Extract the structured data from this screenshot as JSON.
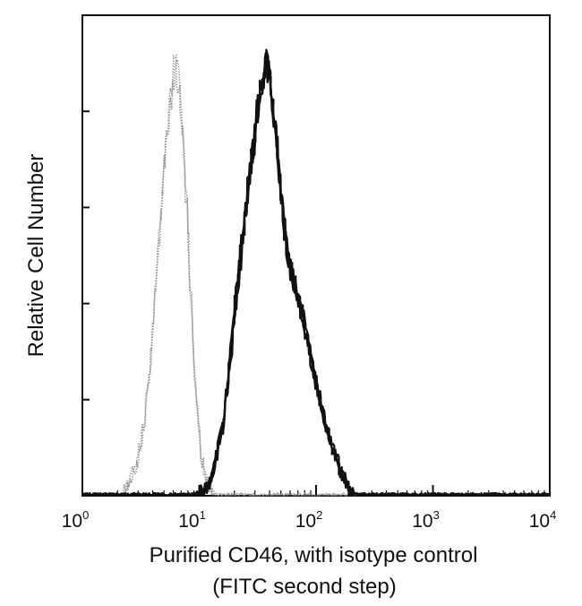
{
  "chart_data": {
    "type": "area",
    "xscale": "log",
    "xlim": [
      1,
      10000
    ],
    "ylim": [
      0,
      100
    ],
    "grid": false,
    "legend": "none",
    "xlabel": [
      "Purified CD46, with isotype control",
      "(FITC second step)"
    ],
    "ylabel": "Relative Cell Number",
    "x_ticks": [
      {
        "base": "10",
        "exp": "0",
        "value": 1
      },
      {
        "base": "10",
        "exp": "1",
        "value": 10
      },
      {
        "base": "10",
        "exp": "2",
        "value": 100
      },
      {
        "base": "10",
        "exp": "3",
        "value": 1000
      },
      {
        "base": "10",
        "exp": "4",
        "value": 10000
      }
    ],
    "y_minor_ticks": [
      20,
      40,
      60,
      80
    ],
    "series": [
      {
        "color": "#8a8a8a",
        "style": "dotted",
        "x": [
          1,
          2.2,
          2.5,
          2.9,
          3.3,
          3.7,
          4.1,
          4.6,
          5.0,
          5.5,
          6.0,
          6.3,
          6.7,
          7.1,
          7.6,
          8.2,
          8.9,
          9.6,
          10.3,
          11.2,
          12.2,
          14,
          20,
          10000
        ],
        "y": [
          0,
          0,
          3,
          7,
          14,
          25,
          40,
          58,
          72,
          83,
          92,
          95,
          91,
          82,
          69,
          52,
          34,
          19,
          9,
          4,
          1,
          0,
          0,
          0
        ]
      },
      {
        "color": "#111111",
        "style": "solid",
        "x": [
          1,
          9,
          11,
          12.5,
          14,
          16,
          18,
          20,
          22.5,
          25,
          28,
          31,
          34,
          37,
          40,
          44,
          48,
          53,
          58,
          64,
          70,
          78,
          86,
          95,
          105,
          120,
          140,
          165,
          195,
          220,
          10000
        ],
        "y": [
          0,
          0,
          1,
          3,
          8,
          16,
          27,
          40,
          52,
          63,
          73,
          83,
          90,
          95,
          92,
          83,
          72,
          60,
          52,
          47,
          44,
          39,
          33,
          27,
          22,
          16,
          10,
          5,
          1,
          0,
          0
        ]
      }
    ]
  }
}
